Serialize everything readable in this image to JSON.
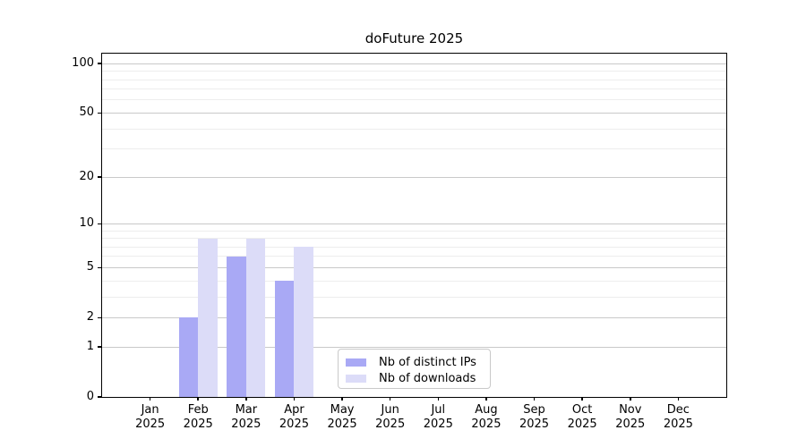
{
  "chart_data": {
    "type": "bar",
    "title": "doFuture 2025",
    "categories": [
      "Jan",
      "Feb",
      "Mar",
      "Apr",
      "May",
      "Jun",
      "Jul",
      "Aug",
      "Sep",
      "Oct",
      "Nov",
      "Dec"
    ],
    "x_year_suffix": "2025",
    "series": [
      {
        "name": "Nb of distinct IPs",
        "color": "#a9a9f5",
        "values": [
          0,
          2,
          6,
          4,
          0,
          0,
          0,
          0,
          0,
          0,
          0,
          0
        ]
      },
      {
        "name": "Nb of downloads",
        "color": "#dcdcf8",
        "values": [
          0,
          8,
          8,
          7,
          0,
          0,
          0,
          0,
          0,
          0,
          0,
          0
        ]
      }
    ],
    "xlabel": "",
    "ylabel": "",
    "yscale": "log1p",
    "ylim": [
      0,
      115
    ],
    "y_major_ticks": [
      0,
      1,
      2,
      5,
      10,
      20,
      50,
      100
    ],
    "y_minor_gridlines": [
      3,
      4,
      6,
      7,
      8,
      9,
      30,
      40,
      60,
      70,
      80,
      90
    ],
    "grid": true,
    "legend_position": "lower center",
    "colors": {
      "axis": "#000000",
      "major_grid": "#c9c9c9",
      "minor_grid": "#ededed",
      "background": "#ffffff",
      "text": "#000000"
    }
  }
}
